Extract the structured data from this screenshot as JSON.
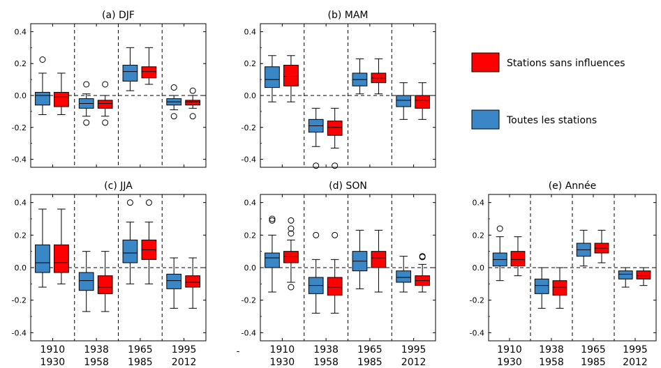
{
  "chart_data": [
    {
      "panel_title": "(a) DJF",
      "type": "boxplot",
      "ylim": [
        -0.45,
        0.45
      ],
      "yticks": [
        "0.4",
        "0.2",
        "0.0",
        "-0.2",
        "-0.4"
      ],
      "categories": [
        "1910\n1930",
        "1938\n1958",
        "1965\n1985",
        "1995\n2012"
      ],
      "series": [
        {
          "name": "Toutes les stations",
          "boxes": [
            {
              "whislo": -0.12,
              "q1": -0.06,
              "med": 0.0,
              "q3": 0.02,
              "whishi": 0.14,
              "fliers": [
                0.225
              ]
            },
            {
              "whislo": -0.13,
              "q1": -0.08,
              "med": -0.05,
              "q3": -0.02,
              "whishi": 0.01,
              "fliers": [
                0.07,
                -0.17
              ]
            },
            {
              "whislo": 0.03,
              "q1": 0.09,
              "med": 0.15,
              "q3": 0.19,
              "whishi": 0.3,
              "fliers": []
            },
            {
              "whislo": -0.09,
              "q1": -0.06,
              "med": -0.04,
              "q3": -0.02,
              "whishi": 0.0,
              "fliers": [
                0.05,
                -0.13
              ]
            }
          ]
        },
        {
          "name": "Stations sans influences",
          "boxes": [
            {
              "whislo": -0.12,
              "q1": -0.07,
              "med": -0.01,
              "q3": 0.02,
              "whishi": 0.14,
              "fliers": []
            },
            {
              "whislo": -0.13,
              "q1": -0.08,
              "med": -0.05,
              "q3": -0.03,
              "whishi": 0.0,
              "fliers": [
                0.07,
                -0.17
              ]
            },
            {
              "whislo": 0.07,
              "q1": 0.11,
              "med": 0.15,
              "q3": 0.18,
              "whishi": 0.3,
              "fliers": []
            },
            {
              "whislo": -0.08,
              "q1": -0.06,
              "med": -0.04,
              "q3": -0.03,
              "whishi": 0.0,
              "fliers": [
                0.03,
                -0.13
              ]
            }
          ]
        }
      ]
    },
    {
      "panel_title": "(b) MAM",
      "type": "boxplot",
      "ylim": [
        -0.45,
        0.45
      ],
      "yticks": [
        "0.4",
        "0.2",
        "0.0",
        "-0.2",
        "-0.4"
      ],
      "categories": [
        "1910\n1930",
        "1938\n1958",
        "1965\n1985",
        "1995\n2012"
      ],
      "series": [
        {
          "name": "Toutes les stations",
          "boxes": [
            {
              "whislo": -0.04,
              "q1": 0.05,
              "med": 0.1,
              "q3": 0.18,
              "whishi": 0.25,
              "fliers": []
            },
            {
              "whislo": -0.32,
              "q1": -0.23,
              "med": -0.19,
              "q3": -0.15,
              "whishi": -0.08,
              "fliers": [
                -0.44
              ]
            },
            {
              "whislo": 0.01,
              "q1": 0.06,
              "med": 0.1,
              "q3": 0.14,
              "whishi": 0.23,
              "fliers": []
            },
            {
              "whislo": -0.15,
              "q1": -0.07,
              "med": -0.03,
              "q3": 0.0,
              "whishi": 0.08,
              "fliers": []
            }
          ]
        },
        {
          "name": "Stations sans influences",
          "boxes": [
            {
              "whislo": -0.04,
              "q1": 0.06,
              "med": 0.12,
              "q3": 0.19,
              "whishi": 0.25,
              "fliers": []
            },
            {
              "whislo": -0.33,
              "q1": -0.25,
              "med": -0.2,
              "q3": -0.16,
              "whishi": -0.08,
              "fliers": [
                -0.44
              ]
            },
            {
              "whislo": 0.01,
              "q1": 0.08,
              "med": 0.11,
              "q3": 0.14,
              "whishi": 0.23,
              "fliers": []
            },
            {
              "whislo": -0.15,
              "q1": -0.08,
              "med": -0.03,
              "q3": 0.0,
              "whishi": 0.08,
              "fliers": []
            }
          ]
        }
      ]
    },
    {
      "panel_title": "(c) JJA",
      "type": "boxplot",
      "ylim": [
        -0.45,
        0.45
      ],
      "yticks": [
        "0.4",
        "0.2",
        "0.0",
        "-0.2",
        "-0.4"
      ],
      "categories": [
        "1910\n1930",
        "1938\n1958",
        "1965\n1985",
        "1995\n2012"
      ],
      "series": [
        {
          "name": "Toutes les stations",
          "boxes": [
            {
              "whislo": -0.12,
              "q1": -0.03,
              "med": 0.03,
              "q3": 0.14,
              "whishi": 0.36,
              "fliers": []
            },
            {
              "whislo": -0.27,
              "q1": -0.14,
              "med": -0.08,
              "q3": -0.03,
              "whishi": 0.1,
              "fliers": []
            },
            {
              "whislo": -0.1,
              "q1": 0.03,
              "med": 0.09,
              "q3": 0.17,
              "whishi": 0.28,
              "fliers": [
                0.4
              ]
            },
            {
              "whislo": -0.25,
              "q1": -0.13,
              "med": -0.08,
              "q3": -0.04,
              "whishi": 0.06,
              "fliers": []
            }
          ]
        },
        {
          "name": "Stations sans influences",
          "boxes": [
            {
              "whislo": -0.1,
              "q1": -0.03,
              "med": 0.03,
              "q3": 0.14,
              "whishi": 0.36,
              "fliers": []
            },
            {
              "whislo": -0.27,
              "q1": -0.16,
              "med": -0.12,
              "q3": -0.05,
              "whishi": 0.1,
              "fliers": []
            },
            {
              "whislo": -0.1,
              "q1": 0.05,
              "med": 0.11,
              "q3": 0.17,
              "whishi": 0.28,
              "fliers": [
                0.4
              ]
            },
            {
              "whislo": -0.25,
              "q1": -0.12,
              "med": -0.09,
              "q3": -0.05,
              "whishi": 0.06,
              "fliers": []
            }
          ]
        }
      ]
    },
    {
      "panel_title": "(d) SON",
      "type": "boxplot",
      "ylim": [
        -0.45,
        0.45
      ],
      "yticks": [
        "0.4",
        "0.2",
        "0.0",
        "-0.2",
        "-0.4"
      ],
      "categories": [
        "1910\n1930",
        "1938\n1958",
        "1965\n1985",
        "1995\n2012"
      ],
      "series": [
        {
          "name": "Toutes les stations",
          "boxes": [
            {
              "whislo": -0.15,
              "q1": 0.0,
              "med": 0.06,
              "q3": 0.09,
              "whishi": 0.2,
              "fliers": [
                0.3,
                0.29
              ]
            },
            {
              "whislo": -0.28,
              "q1": -0.16,
              "med": -0.11,
              "q3": -0.06,
              "whishi": 0.05,
              "fliers": [
                0.2
              ]
            },
            {
              "whislo": -0.13,
              "q1": -0.02,
              "med": 0.04,
              "q3": 0.1,
              "whishi": 0.23,
              "fliers": []
            },
            {
              "whislo": -0.15,
              "q1": -0.09,
              "med": -0.06,
              "q3": -0.02,
              "whishi": 0.07,
              "fliers": []
            }
          ]
        },
        {
          "name": "Stations sans influences",
          "boxes": [
            {
              "whislo": -0.09,
              "q1": 0.03,
              "med": 0.07,
              "q3": 0.1,
              "whishi": 0.17,
              "fliers": [
                0.29,
                0.24,
                0.21,
                -0.12
              ]
            },
            {
              "whislo": -0.28,
              "q1": -0.17,
              "med": -0.12,
              "q3": -0.06,
              "whishi": 0.05,
              "fliers": [
                0.2
              ]
            },
            {
              "whislo": -0.15,
              "q1": 0.0,
              "med": 0.06,
              "q3": 0.1,
              "whishi": 0.23,
              "fliers": []
            },
            {
              "whislo": -0.15,
              "q1": -0.11,
              "med": -0.08,
              "q3": -0.05,
              "whishi": 0.02,
              "fliers": [
                0.07,
                0.065
              ]
            }
          ]
        }
      ]
    },
    {
      "panel_title": "(e) Année",
      "type": "boxplot",
      "ylim": [
        -0.45,
        0.45
      ],
      "yticks": [
        "0.4",
        "0.2",
        "0.0",
        "-0.2",
        "-0.4"
      ],
      "categories": [
        "1910\n1930",
        "1938\n1958",
        "1965\n1985",
        "1995\n2012"
      ],
      "series": [
        {
          "name": "Toutes les stations",
          "boxes": [
            {
              "whislo": -0.08,
              "q1": 0.01,
              "med": 0.05,
              "q3": 0.09,
              "whishi": 0.19,
              "fliers": [
                0.24
              ]
            },
            {
              "whislo": -0.25,
              "q1": -0.16,
              "med": -0.11,
              "q3": -0.07,
              "whishi": 0.0,
              "fliers": []
            },
            {
              "whislo": 0.01,
              "q1": 0.07,
              "med": 0.11,
              "q3": 0.15,
              "whishi": 0.23,
              "fliers": []
            },
            {
              "whislo": -0.12,
              "q1": -0.07,
              "med": -0.04,
              "q3": -0.02,
              "whishi": 0.0,
              "fliers": []
            }
          ]
        },
        {
          "name": "Stations sans influences",
          "boxes": [
            {
              "whislo": -0.05,
              "q1": 0.01,
              "med": 0.05,
              "q3": 0.1,
              "whishi": 0.19,
              "fliers": []
            },
            {
              "whislo": -0.25,
              "q1": -0.17,
              "med": -0.12,
              "q3": -0.08,
              "whishi": 0.0,
              "fliers": []
            },
            {
              "whislo": 0.03,
              "q1": 0.09,
              "med": 0.12,
              "q3": 0.15,
              "whishi": 0.23,
              "fliers": []
            },
            {
              "whislo": -0.11,
              "q1": -0.07,
              "med": -0.05,
              "q3": -0.02,
              "whishi": 0.0,
              "fliers": []
            }
          ]
        }
      ]
    }
  ],
  "legend": {
    "placement": "right, top row",
    "entries": [
      {
        "label": "Stations sans influences",
        "color": "#ff0000"
      },
      {
        "label": "Toutes les stations",
        "color": "#3a87c8"
      }
    ]
  },
  "colors": {
    "blue": "#3a87c8",
    "red": "#ff0000"
  },
  "x_axis_labels": [
    [
      "1910",
      "1930"
    ],
    [
      "1938",
      "1958"
    ],
    [
      "1965",
      "1985"
    ],
    [
      "1995",
      "2012"
    ]
  ],
  "stray_mark": "-"
}
